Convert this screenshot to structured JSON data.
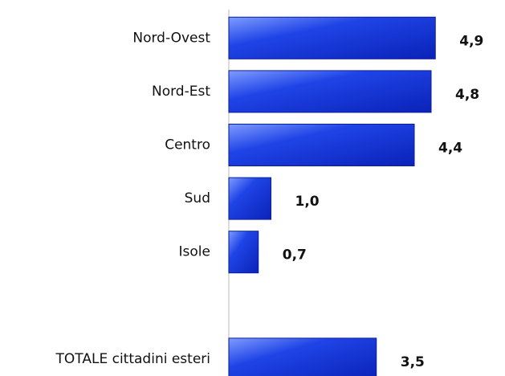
{
  "chart_data": {
    "type": "hbar",
    "categories": [
      "Nord-Ovest",
      "Nord-Est",
      "Centro",
      "Sud",
      "Isole",
      null,
      "TOTALE cittadini esteri"
    ],
    "values": [
      4.9,
      4.8,
      4.4,
      1.0,
      0.7,
      null,
      3.5
    ],
    "value_labels": [
      "4,9",
      "4,8",
      "4,4",
      "1,0",
      "0,7",
      null,
      "3,5"
    ],
    "color": "#0a2bd0",
    "xlim": [
      0,
      6
    ]
  }
}
